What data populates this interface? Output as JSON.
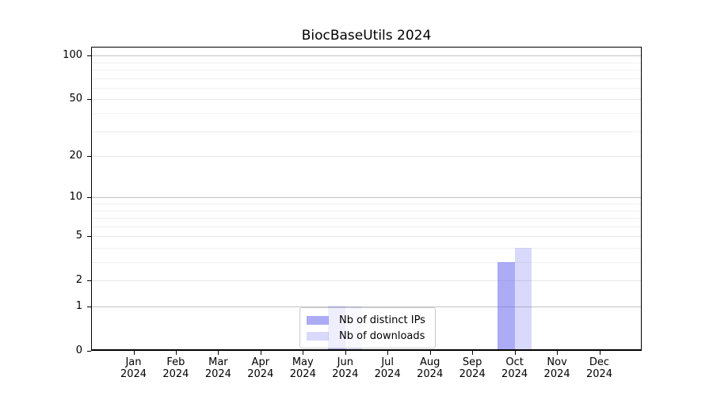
{
  "chart_data": {
    "type": "bar",
    "title": "BiocBaseUtils 2024",
    "scale": "log1p",
    "grid": true,
    "legend_position": "bottom-center-inside",
    "xlabel": "",
    "ylabel": "",
    "yticks": [
      0,
      1,
      2,
      5,
      10,
      20,
      50,
      100
    ],
    "ylim": [
      0,
      115
    ],
    "categories": [
      {
        "month": "Jan",
        "year": "2024"
      },
      {
        "month": "Feb",
        "year": "2024"
      },
      {
        "month": "Mar",
        "year": "2024"
      },
      {
        "month": "Apr",
        "year": "2024"
      },
      {
        "month": "May",
        "year": "2024"
      },
      {
        "month": "Jun",
        "year": "2024"
      },
      {
        "month": "Jul",
        "year": "2024"
      },
      {
        "month": "Aug",
        "year": "2024"
      },
      {
        "month": "Sep",
        "year": "2024"
      },
      {
        "month": "Oct",
        "year": "2024"
      },
      {
        "month": "Nov",
        "year": "2024"
      },
      {
        "month": "Dec",
        "year": "2024"
      }
    ],
    "series": [
      {
        "name": "Nb of distinct IPs",
        "color": "#6666ee",
        "alpha": 0.55,
        "values": [
          0,
          0,
          0,
          0,
          0,
          1,
          0,
          0,
          0,
          3,
          0,
          0
        ]
      },
      {
        "name": "Nb of downloads",
        "color": "#6666ee",
        "alpha": 0.25,
        "values": [
          0,
          0,
          0,
          0,
          0,
          1,
          0,
          0,
          0,
          4,
          0,
          0
        ]
      }
    ],
    "colors": {
      "grid_major": "#c3c3c3",
      "grid_mid": "#e6e6e6",
      "grid_minor": "#f0f0f0",
      "axis": "#000000"
    }
  }
}
